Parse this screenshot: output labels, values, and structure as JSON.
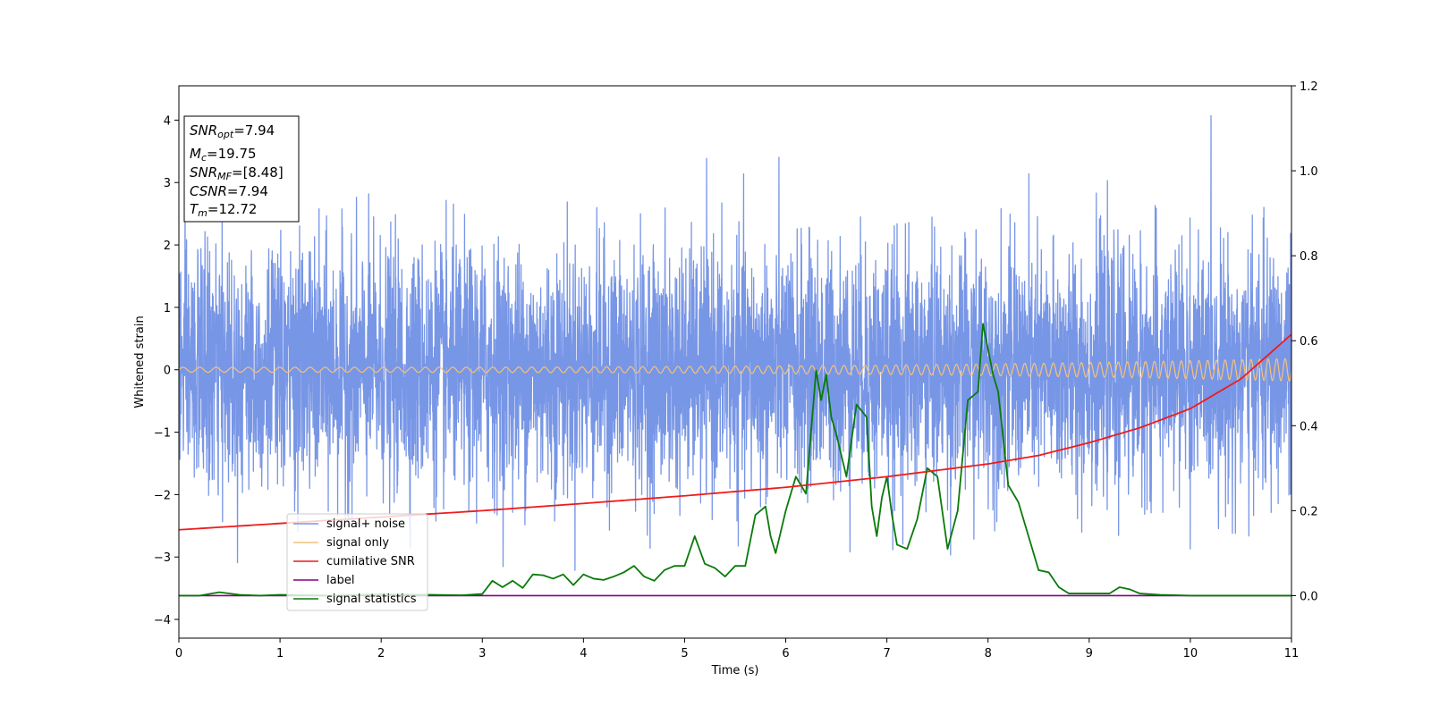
{
  "chart_data": {
    "type": "line",
    "title": "",
    "xlabel": "Time (s)",
    "ylabel": "Whitened strain",
    "ylabel_right": "",
    "xlim": [
      0,
      11
    ],
    "ylim": [
      -4.3,
      4.55
    ],
    "ylim_right": [
      -0.1,
      1.2
    ],
    "grid": false,
    "x_ticks": [
      "0",
      "1",
      "2",
      "3",
      "4",
      "5",
      "6",
      "7",
      "8",
      "9",
      "10",
      "11"
    ],
    "y_ticks": [
      "4",
      "3",
      "2",
      "1",
      "0",
      "−1",
      "−2",
      "−3",
      "−4"
    ],
    "y_right_ticks": [
      "1.2",
      "1.0",
      "0.8",
      "0.6",
      "0.4",
      "0.2",
      "0.0"
    ],
    "legend_position": "lower-left",
    "stats_box": {
      "position": "top-left",
      "lines": [
        {
          "symbol": "SNR",
          "sub": "opt",
          "text": "=7.94"
        },
        {
          "symbol": "M",
          "sub": "c",
          "text": "=19.75"
        },
        {
          "symbol": "SNR",
          "sub": "MF",
          "text": "=[8.48]"
        },
        {
          "symbol": "CSNR",
          "sub": "",
          "text": "=7.94"
        },
        {
          "symbol": "T",
          "sub": "m",
          "text": "=12.72"
        }
      ]
    },
    "series": [
      {
        "name": "signal+ noise",
        "color": "#7896e6",
        "axis": "left",
        "kind": "noise",
        "noise_std": 0.95,
        "noise_range": [
          -3.9,
          4.2
        ],
        "x_range": [
          0,
          11
        ]
      },
      {
        "name": "signal only",
        "color": "#f5c27a",
        "axis": "left",
        "kind": "chirp",
        "amplitude_start": 0.04,
        "amplitude_end": 0.18,
        "frequency_start_hz": 6,
        "frequency_end_hz": 12
      },
      {
        "name": "cumilative SNR",
        "color": "#ee1c1c",
        "axis": "right",
        "x": [
          0,
          1,
          2,
          3,
          4,
          5,
          6,
          7,
          8,
          8.5,
          9,
          9.5,
          10,
          10.5,
          11
        ],
        "y": [
          0.155,
          0.17,
          0.185,
          0.2,
          0.217,
          0.235,
          0.255,
          0.28,
          0.31,
          0.33,
          0.36,
          0.395,
          0.44,
          0.51,
          0.615
        ]
      },
      {
        "name": "label",
        "color": "#800080",
        "axis": "right",
        "x": [
          0,
          11
        ],
        "y": [
          0,
          0
        ]
      },
      {
        "name": "signal statistics",
        "color": "#0a7a0a",
        "axis": "right",
        "x": [
          0,
          0.2,
          0.4,
          0.6,
          0.8,
          1.0,
          1.5,
          2.0,
          2.5,
          2.8,
          3.0,
          3.1,
          3.2,
          3.3,
          3.4,
          3.5,
          3.6,
          3.7,
          3.8,
          3.9,
          4.0,
          4.1,
          4.2,
          4.3,
          4.4,
          4.5,
          4.6,
          4.7,
          4.8,
          4.9,
          5.0,
          5.1,
          5.2,
          5.3,
          5.4,
          5.5,
          5.6,
          5.7,
          5.8,
          5.85,
          5.9,
          6.0,
          6.1,
          6.2,
          6.3,
          6.35,
          6.4,
          6.45,
          6.5,
          6.6,
          6.7,
          6.8,
          6.85,
          6.9,
          6.95,
          7.0,
          7.05,
          7.1,
          7.2,
          7.3,
          7.4,
          7.5,
          7.6,
          7.7,
          7.8,
          7.9,
          7.95,
          8.05,
          8.1,
          8.2,
          8.3,
          8.4,
          8.5,
          8.6,
          8.7,
          8.8,
          9.0,
          9.2,
          9.3,
          9.4,
          9.5,
          9.7,
          10.0,
          11.0
        ],
        "y": [
          0,
          0,
          0.008,
          0.002,
          0,
          0.002,
          0,
          0.003,
          0.002,
          0.001,
          0.004,
          0.035,
          0.02,
          0.035,
          0.018,
          0.05,
          0.048,
          0.04,
          0.05,
          0.025,
          0.05,
          0.04,
          0.037,
          0.045,
          0.055,
          0.07,
          0.045,
          0.035,
          0.06,
          0.07,
          0.07,
          0.14,
          0.075,
          0.065,
          0.045,
          0.07,
          0.07,
          0.19,
          0.21,
          0.14,
          0.1,
          0.2,
          0.28,
          0.24,
          0.53,
          0.46,
          0.52,
          0.42,
          0.38,
          0.28,
          0.45,
          0.42,
          0.21,
          0.14,
          0.23,
          0.28,
          0.19,
          0.12,
          0.11,
          0.18,
          0.3,
          0.28,
          0.11,
          0.2,
          0.46,
          0.48,
          0.64,
          0.52,
          0.48,
          0.26,
          0.22,
          0.14,
          0.06,
          0.055,
          0.02,
          0.005,
          0.005,
          0.005,
          0.02,
          0.015,
          0.005,
          0.002,
          0,
          0
        ]
      }
    ]
  }
}
